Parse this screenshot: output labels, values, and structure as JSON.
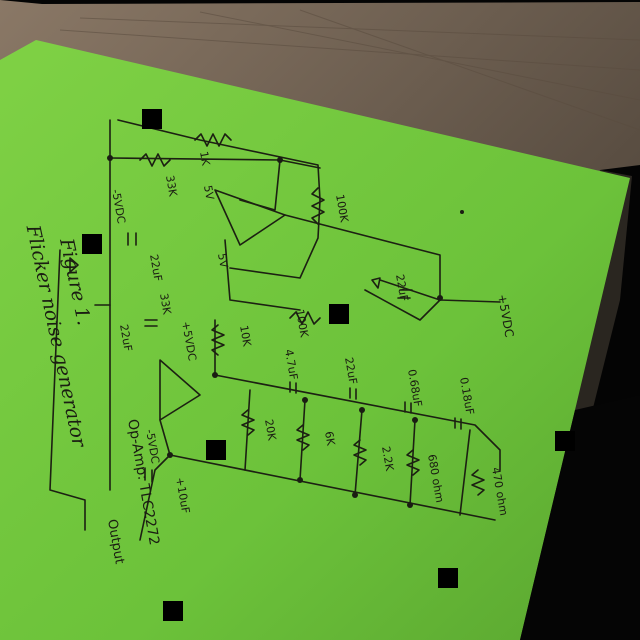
{
  "photo": {
    "paper_color": "#6fc23e",
    "table_color": "#6b5b4c"
  },
  "notebook": {
    "title_line1": "Figure 1.",
    "title_line2": "Flicker noise generator",
    "opamp_note": "Op-Amp: TLC2272",
    "output_label": "Output",
    "pos_supply": "+5VDC",
    "neg_supply": "-5VDC",
    "components": {
      "r_1k": "1K",
      "r_100k_top": "100K",
      "r_33k_a": "33K",
      "r_33k_b": "33K",
      "r_10k": "10K",
      "r_100k_mid": "100K",
      "c_22uf_a": "22uF",
      "c_22uf_b": "22uF",
      "c_22uf_c": "22uF",
      "c_4_7uf_a": "4.7uF",
      "c_4_7uf_b": "4.7uF",
      "c_22uf_d": "22uF",
      "c_0_68uf": "0.68uF",
      "c_0_18uf": "0.18uF",
      "c_10uf_out": "+10uF",
      "r_20k": "20K",
      "r_6k": "6K",
      "r_2_2k": "2.2K",
      "r_680": "680 ohm",
      "r_470": "470 ohm",
      "v5_label": "5V",
      "v5_label_b": "5V",
      "pos5_a": "+5VDC",
      "neg5_b": "-5VDC"
    }
  }
}
